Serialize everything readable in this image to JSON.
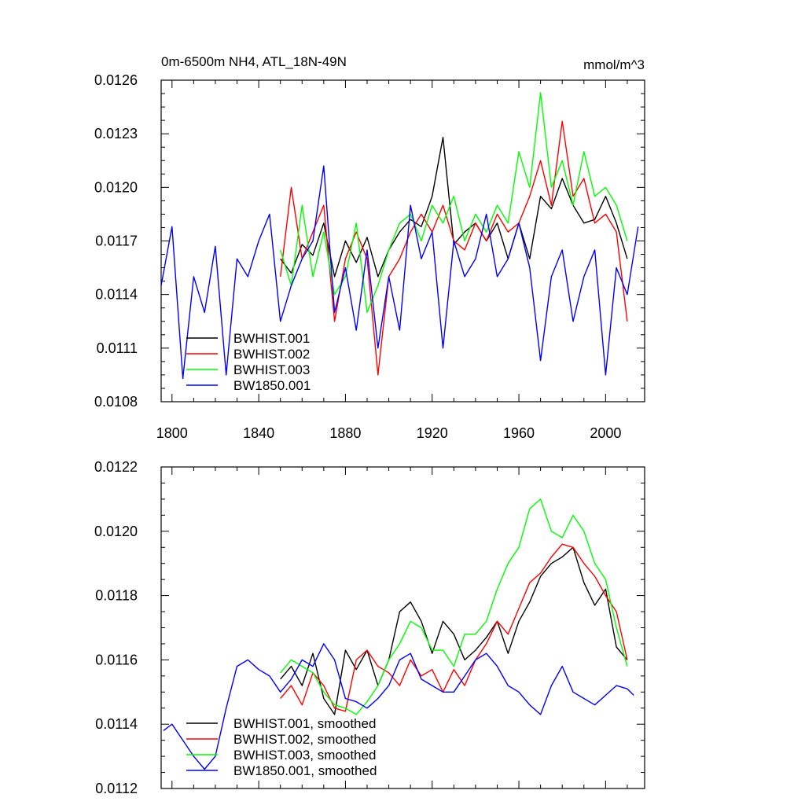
{
  "chart_data": [
    {
      "type": "line",
      "title": "0m-6500m NH4, ATL_18N-49N",
      "units": "mmol/m^3",
      "xlim": [
        1795,
        2018
      ],
      "ylim": [
        0.0108,
        0.0126
      ],
      "x_ticks": [
        1800,
        1840,
        1880,
        1920,
        1960,
        2000
      ],
      "x_tick_labels": [
        "1800",
        "1840",
        "1880",
        "1920",
        "1960",
        "2000"
      ],
      "y_ticks": [
        0.0108,
        0.0111,
        0.0114,
        0.0117,
        0.012,
        0.0123,
        0.0126
      ],
      "y_tick_labels": [
        "0.0108",
        "0.0111",
        "0.0114",
        "0.0117",
        "0.0120",
        "0.0123",
        "0.0126"
      ],
      "legend_position": "bottom-left",
      "series": [
        {
          "name": "BWHIST.001",
          "color": "#000000",
          "x": [
            1850,
            1855,
            1860,
            1865,
            1870,
            1875,
            1880,
            1885,
            1890,
            1895,
            1900,
            1905,
            1910,
            1915,
            1920,
            1925,
            1930,
            1935,
            1940,
            1945,
            1950,
            1955,
            1960,
            1965,
            1970,
            1975,
            1980,
            1985,
            1990,
            1995,
            2000,
            2005,
            2010
          ],
          "values": [
            0.0116,
            0.01152,
            0.01168,
            0.01162,
            0.0118,
            0.0115,
            0.0117,
            0.01158,
            0.01172,
            0.0115,
            0.01165,
            0.01175,
            0.01182,
            0.01178,
            0.01195,
            0.01228,
            0.01168,
            0.01175,
            0.0118,
            0.0117,
            0.0118,
            0.0116,
            0.0118,
            0.0116,
            0.01195,
            0.01188,
            0.01205,
            0.0119,
            0.0118,
            0.01182,
            0.01195,
            0.0118,
            0.0116
          ]
        },
        {
          "name": "BWHIST.002",
          "color": "#ff0000",
          "x": [
            1850,
            1855,
            1860,
            1865,
            1870,
            1875,
            1880,
            1885,
            1890,
            1895,
            1900,
            1905,
            1910,
            1915,
            1920,
            1925,
            1930,
            1935,
            1940,
            1945,
            1950,
            1955,
            1960,
            1965,
            1970,
            1975,
            1980,
            1985,
            1990,
            1995,
            2000,
            2005,
            2010
          ],
          "values": [
            0.0115,
            0.012,
            0.0116,
            0.01175,
            0.0119,
            0.01125,
            0.0116,
            0.01175,
            0.0116,
            0.01095,
            0.0115,
            0.0116,
            0.01175,
            0.01185,
            0.01175,
            0.0119,
            0.0117,
            0.01165,
            0.0118,
            0.0117,
            0.01185,
            0.01175,
            0.0118,
            0.01195,
            0.01215,
            0.0119,
            0.01237,
            0.01195,
            0.01205,
            0.0118,
            0.01185,
            0.01175,
            0.01125
          ]
        },
        {
          "name": "BWHIST.003",
          "color": "#00ff00",
          "x": [
            1850,
            1855,
            1860,
            1865,
            1870,
            1875,
            1880,
            1885,
            1890,
            1895,
            1900,
            1905,
            1910,
            1915,
            1920,
            1925,
            1930,
            1935,
            1940,
            1945,
            1950,
            1955,
            1960,
            1965,
            1970,
            1975,
            1980,
            1985,
            1990,
            1995,
            2000,
            2005,
            2010
          ],
          "values": [
            0.01165,
            0.01145,
            0.0119,
            0.0115,
            0.01175,
            0.0114,
            0.0115,
            0.0118,
            0.0113,
            0.01145,
            0.01165,
            0.0118,
            0.01185,
            0.0117,
            0.0119,
            0.0118,
            0.01195,
            0.0117,
            0.01185,
            0.01175,
            0.0119,
            0.0118,
            0.0122,
            0.012,
            0.01253,
            0.012,
            0.01215,
            0.0119,
            0.0122,
            0.01195,
            0.012,
            0.0119,
            0.0117
          ]
        },
        {
          "name": "BW1850.001",
          "color": "#0000ff",
          "x": [
            1795,
            1800,
            1805,
            1810,
            1815,
            1820,
            1825,
            1830,
            1835,
            1840,
            1845,
            1850,
            1855,
            1860,
            1865,
            1870,
            1875,
            1880,
            1885,
            1890,
            1895,
            1900,
            1905,
            1910,
            1915,
            1920,
            1925,
            1930,
            1935,
            1940,
            1945,
            1950,
            1955,
            1960,
            1965,
            1970,
            1975,
            1980,
            1985,
            1990,
            1995,
            2000,
            2005,
            2010,
            2015
          ],
          "values": [
            0.01145,
            0.01178,
            0.01093,
            0.0115,
            0.0113,
            0.01167,
            0.01095,
            0.0116,
            0.0115,
            0.0117,
            0.01185,
            0.01125,
            0.01145,
            0.0116,
            0.0117,
            0.01212,
            0.0113,
            0.01155,
            0.0112,
            0.01165,
            0.0111,
            0.0115,
            0.0112,
            0.0119,
            0.0116,
            0.01175,
            0.0111,
            0.0117,
            0.0115,
            0.0116,
            0.01185,
            0.0115,
            0.0116,
            0.0118,
            0.01155,
            0.01103,
            0.0115,
            0.01165,
            0.01125,
            0.0115,
            0.01165,
            0.01095,
            0.01155,
            0.0114,
            0.01178
          ]
        }
      ]
    },
    {
      "type": "line",
      "xlim": [
        1795,
        2018
      ],
      "ylim": [
        0.0112,
        0.0122
      ],
      "x_ticks": [
        1800,
        1840,
        1880,
        1920,
        1960,
        2000
      ],
      "y_ticks": [
        0.0112,
        0.0114,
        0.0116,
        0.0118,
        0.012,
        0.0122
      ],
      "y_tick_labels": [
        "0.0112",
        "0.0114",
        "0.0116",
        "0.0118",
        "0.0120",
        "0.0122"
      ],
      "legend_position": "bottom-left",
      "series": [
        {
          "name": "BWHIST.001, smoothed",
          "color": "#000000",
          "x": [
            1850,
            1855,
            1860,
            1865,
            1870,
            1875,
            1880,
            1885,
            1890,
            1895,
            1900,
            1905,
            1910,
            1915,
            1920,
            1925,
            1930,
            1935,
            1940,
            1945,
            1950,
            1955,
            1960,
            1965,
            1970,
            1975,
            1980,
            1985,
            1990,
            1995,
            2000,
            2005,
            2010
          ],
          "values": [
            0.01154,
            0.01158,
            0.01152,
            0.01162,
            0.01148,
            0.01143,
            0.01163,
            0.01157,
            0.01163,
            0.01152,
            0.0116,
            0.01175,
            0.01178,
            0.01172,
            0.01162,
            0.01172,
            0.01168,
            0.0116,
            0.01163,
            0.01167,
            0.01172,
            0.01162,
            0.01172,
            0.01178,
            0.01186,
            0.0119,
            0.01192,
            0.01195,
            0.01184,
            0.01177,
            0.01182,
            0.01164,
            0.0116
          ]
        },
        {
          "name": "BWHIST.002, smoothed",
          "color": "#ff0000",
          "x": [
            1850,
            1855,
            1860,
            1865,
            1870,
            1875,
            1880,
            1885,
            1890,
            1895,
            1900,
            1905,
            1910,
            1915,
            1920,
            1925,
            1930,
            1935,
            1940,
            1945,
            1950,
            1955,
            1960,
            1965,
            1970,
            1975,
            1980,
            1985,
            1990,
            1995,
            2000,
            2005,
            2010
          ],
          "values": [
            0.01148,
            0.01152,
            0.01146,
            0.01156,
            0.01152,
            0.01145,
            0.01144,
            0.0116,
            0.01163,
            0.01158,
            0.01156,
            0.01152,
            0.0116,
            0.01155,
            0.01157,
            0.0115,
            0.01157,
            0.01152,
            0.0116,
            0.01165,
            0.01172,
            0.01168,
            0.01176,
            0.01184,
            0.01187,
            0.01192,
            0.01196,
            0.01195,
            0.0119,
            0.01186,
            0.0118,
            0.01175,
            0.0116
          ]
        },
        {
          "name": "BWHIST.003, smoothed",
          "color": "#00ff00",
          "x": [
            1850,
            1855,
            1860,
            1865,
            1870,
            1875,
            1880,
            1885,
            1890,
            1895,
            1900,
            1905,
            1910,
            1915,
            1920,
            1925,
            1930,
            1935,
            1940,
            1945,
            1950,
            1955,
            1960,
            1965,
            1970,
            1975,
            1980,
            1985,
            1990,
            1995,
            2000,
            2005,
            2010
          ],
          "values": [
            0.01156,
            0.0116,
            0.01158,
            0.01156,
            0.0115,
            0.01146,
            0.01145,
            0.01143,
            0.01147,
            0.01152,
            0.0116,
            0.01165,
            0.01172,
            0.0117,
            0.01163,
            0.01163,
            0.01158,
            0.01168,
            0.01168,
            0.01172,
            0.01182,
            0.0119,
            0.01195,
            0.01207,
            0.0121,
            0.012,
            0.01198,
            0.01205,
            0.012,
            0.0119,
            0.01185,
            0.0117,
            0.01158
          ]
        },
        {
          "name": "BW1850.001, smoothed",
          "color": "#0000ff",
          "x": [
            1796,
            1800,
            1805,
            1810,
            1815,
            1820,
            1825,
            1830,
            1835,
            1840,
            1845,
            1850,
            1855,
            1860,
            1865,
            1870,
            1875,
            1880,
            1885,
            1890,
            1895,
            1900,
            1905,
            1910,
            1915,
            1920,
            1925,
            1930,
            1935,
            1940,
            1945,
            1950,
            1955,
            1960,
            1965,
            1970,
            1975,
            1980,
            1985,
            1990,
            1995,
            2000,
            2005,
            2010,
            2013
          ],
          "values": [
            0.01138,
            0.0114,
            0.01135,
            0.0113,
            0.01126,
            0.0113,
            0.01145,
            0.01158,
            0.0116,
            0.01157,
            0.01155,
            0.0115,
            0.01154,
            0.0116,
            0.01158,
            0.01165,
            0.0116,
            0.01148,
            0.01147,
            0.01145,
            0.01148,
            0.01152,
            0.0116,
            0.01162,
            0.01154,
            0.01152,
            0.0115,
            0.0115,
            0.01155,
            0.0116,
            0.01162,
            0.01158,
            0.01152,
            0.0115,
            0.01146,
            0.01143,
            0.01152,
            0.01158,
            0.0115,
            0.01148,
            0.01146,
            0.01149,
            0.01152,
            0.01151,
            0.01149
          ]
        }
      ]
    }
  ]
}
